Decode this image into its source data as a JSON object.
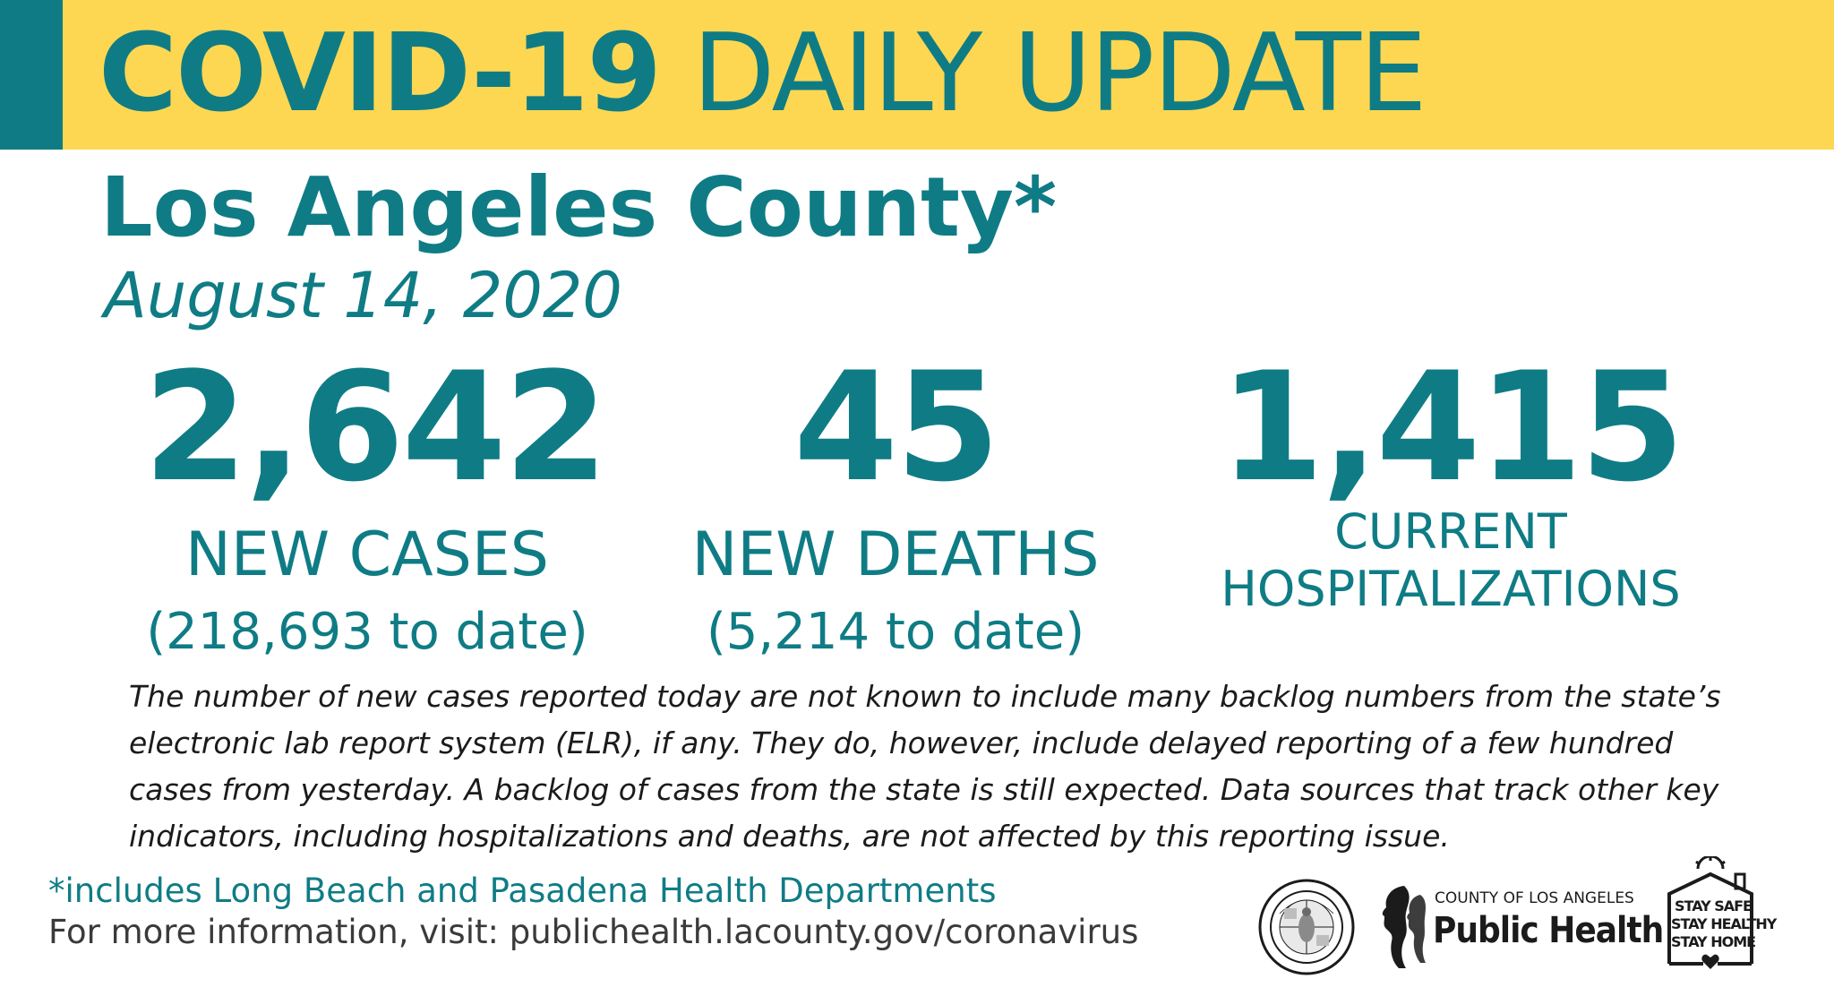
{
  "header": {
    "title_bold": "COVID-19",
    "title_regular": "DAILY UPDATE"
  },
  "county": "Los Angeles County*",
  "date": "August 14, 2020",
  "stats": {
    "new_cases": {
      "value": "2,642",
      "label": "NEW CASES",
      "to_date": "(218,693 to date)"
    },
    "new_deaths": {
      "value": "45",
      "label": "NEW DEATHS",
      "to_date": "(5,214 to date)"
    },
    "hospitalizations": {
      "value": "1,415",
      "label_line1": "CURRENT",
      "label_line2": "HOSPITALIZATIONS"
    }
  },
  "note": "The number of new cases reported today are not known to include many backlog numbers from the state’s electronic lab report system (ELR), if any. They do, however, include delayed reporting of a few hundred cases from yesterday. A backlog of cases from the state is still expected. Data sources that track other key indicators, including hospitalizations and deaths, are not affected by this reporting issue.",
  "footnote": "*includes Long Beach and Pasadena Health Departments",
  "more_info": "For more information, visit: publichealth.lacounty.gov/coronavirus",
  "logos": {
    "seal_text_top": "COUNTY OF LOS ANGELES",
    "seal_text_bottom": "CALIFORNIA",
    "public_health_small": "COUNTY OF LOS ANGELES",
    "public_health_big": "Public Health",
    "stay_safe_lines": [
      "STAY SAFE",
      "STAY HEALTHY",
      "STAY HOME"
    ]
  },
  "colors": {
    "teal": "#0f7c85",
    "yellow": "#fdd752",
    "text_dark": "#1b1b1b"
  }
}
